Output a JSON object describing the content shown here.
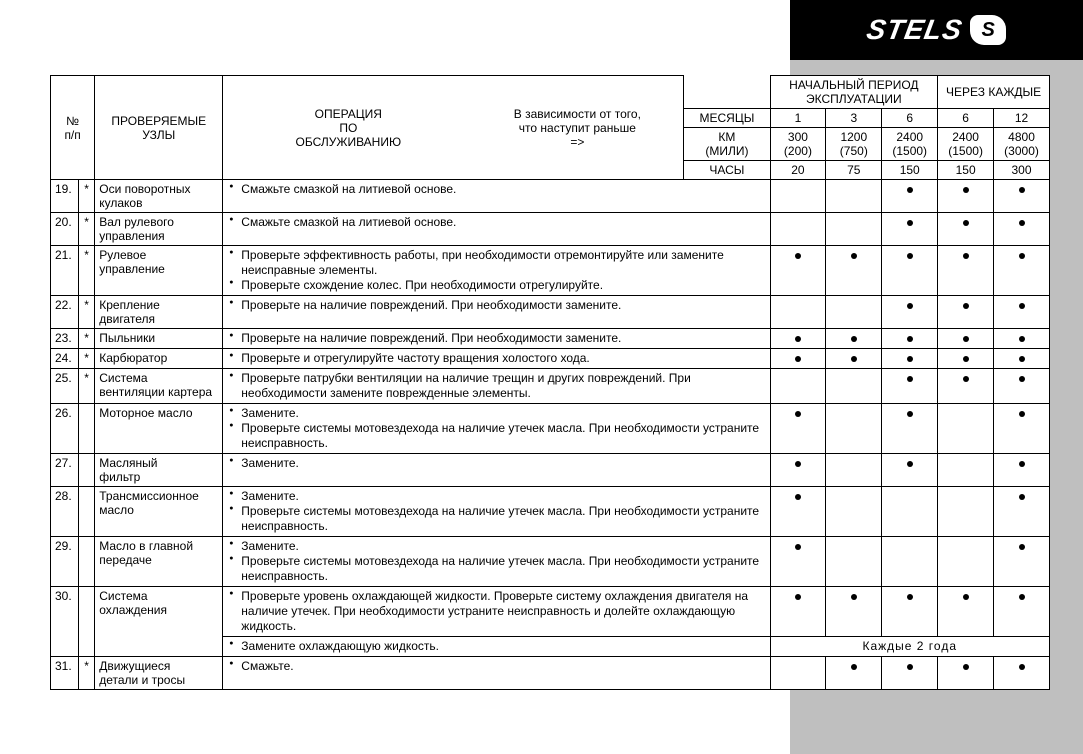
{
  "brand": {
    "name": "STELS",
    "badge": "S"
  },
  "header": {
    "num": "№\nп/п",
    "nodes": "ПРОВЕРЯЕМЫЕ\nУЗЛЫ",
    "operation": "ОПЕРАЦИЯ\nПО\nОБСЛУЖИВАНИЮ",
    "depends": "В зависимости от того,\nчто наступит раньше\n=>",
    "initial": "НАЧАЛЬНЫЙ ПЕРИОД\nЭКСПЛУАТАЦИИ",
    "every": "ЧЕРЕЗ КАЖДЫЕ",
    "months": "МЕСЯЦЫ",
    "km": "КМ\n(МИЛИ)",
    "hours": "ЧАСЫ",
    "months_vals": [
      "1",
      "3",
      "6",
      "6",
      "12"
    ],
    "km_vals": [
      "300\n(200)",
      "1200\n(750)",
      "2400\n(1500)",
      "2400\n(1500)",
      "4800\n(3000)"
    ],
    "hours_vals": [
      "20",
      "75",
      "150",
      "150",
      "300"
    ]
  },
  "rows": [
    {
      "n": "19.",
      "star": "*",
      "node": "Оси поворотных\n   кулаков",
      "ops": [
        "Смажьте смазкой на литиевой основе."
      ],
      "marks": [
        false,
        false,
        true,
        true,
        true
      ]
    },
    {
      "n": "20.",
      "star": "*",
      "node": "Вал рулевого\nуправления",
      "ops": [
        "Смажьте смазкой на литиевой основе."
      ],
      "marks": [
        false,
        false,
        true,
        true,
        true
      ]
    },
    {
      "n": "21.",
      "star": "*",
      "node": "Рулевое\nуправление",
      "ops": [
        "Проверьте эффективность работы, при необходимости отремонтируйте или замените неисправные элементы.",
        "Проверьте схождение колес. При необходимости отрегулируйте."
      ],
      "marks": [
        true,
        true,
        true,
        true,
        true
      ]
    },
    {
      "n": "22.",
      "star": "*",
      "node": "Крепление\nдвигателя",
      "ops": [
        "Проверьте на наличие повреждений. При необходимости замените."
      ],
      "marks": [
        false,
        false,
        true,
        true,
        true
      ]
    },
    {
      "n": "23.",
      "star": "*",
      "node": "Пыльники",
      "ops": [
        "Проверьте на наличие повреждений. При необходимости замените."
      ],
      "marks": [
        true,
        true,
        true,
        true,
        true
      ]
    },
    {
      "n": "24.",
      "star": "*",
      "node": "Карбюратор",
      "ops": [
        "Проверьте и отрегулируйте частоту вращения холостого хода."
      ],
      "marks": [
        true,
        true,
        true,
        true,
        true
      ]
    },
    {
      "n": "25.",
      "star": "*",
      "node": "Система\nвентиляции картера",
      "ops": [
        "Проверьте патрубки вентиляции на наличие трещин и других повреждений. При необходимости замените поврежденные элементы."
      ],
      "marks": [
        false,
        false,
        true,
        true,
        true
      ]
    },
    {
      "n": "26.",
      "star": "",
      "node": "Моторное масло",
      "ops": [
        "Замените.",
        "Проверьте системы мотовездехода на наличие утечек масла. При необходимости устраните неисправность."
      ],
      "marks": [
        true,
        false,
        true,
        false,
        true
      ]
    },
    {
      "n": "27.",
      "star": "",
      "node": "Масляный\nфильтр",
      "ops": [
        "Замените."
      ],
      "marks": [
        true,
        false,
        true,
        false,
        true
      ]
    },
    {
      "n": "28.",
      "star": "",
      "node": "Трансмиссионное\n масло",
      "ops": [
        "Замените.",
        "Проверьте системы мотовездехода на наличие утечек масла. При необходимости устраните неисправность."
      ],
      "marks": [
        true,
        false,
        false,
        false,
        true
      ]
    },
    {
      "n": "29.",
      "star": "",
      "node": "Масло в главной\nпередаче",
      "ops": [
        "Замените.",
        "Проверьте системы мотовездехода на наличие утечек масла. При необходимости устраните неисправность."
      ],
      "marks": [
        true,
        false,
        false,
        false,
        true
      ]
    },
    {
      "n": "30.",
      "star": "",
      "node": "Система\n охлаждения",
      "ops": [
        "Проверьте уровень охлаждающей жидкости. Проверьте систему охлаждения двигателя на наличие утечек. При необходимости устраните неисправность и долейте охлаждающую жидкость."
      ],
      "marks": [
        true,
        true,
        true,
        true,
        true
      ],
      "extra_op": "Замените охлаждающую жидкость.",
      "extra_note": "Каждые   2 года"
    },
    {
      "n": "31.",
      "star": "*",
      "node": "Движущиеся\nдетали и тросы",
      "ops": [
        "Смажьте."
      ],
      "marks": [
        false,
        true,
        true,
        true,
        true
      ]
    }
  ],
  "colors": {
    "grey": "#bfbfbf",
    "black": "#000000",
    "white": "#ffffff"
  }
}
